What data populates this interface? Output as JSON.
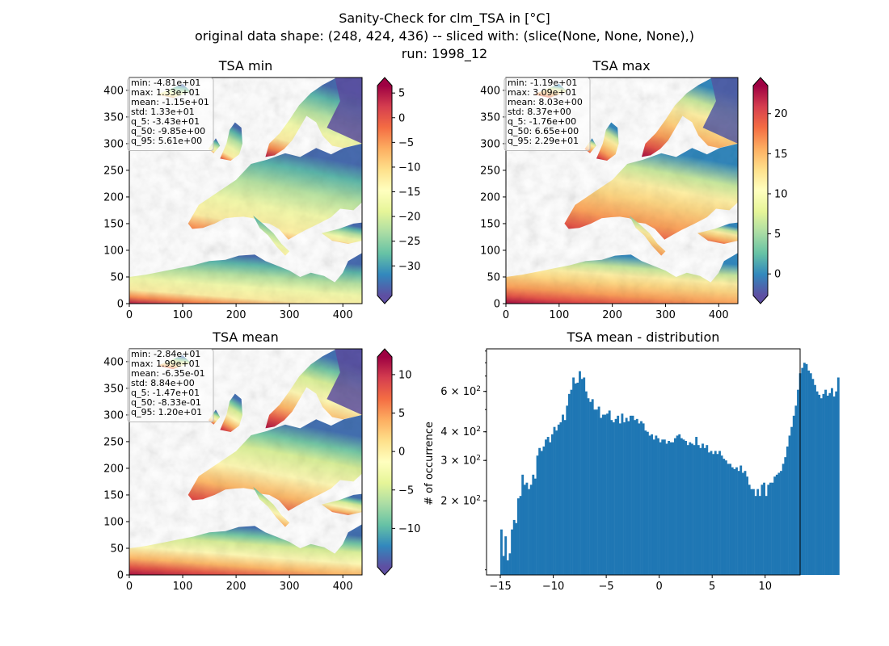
{
  "figure": {
    "title_line1": "Sanity-Check for clm_TSA in [°C]",
    "title_line2": "original data shape: (248, 424, 436) -- sliced with: (slice(None, None, None),)",
    "title_line3": "run: 1998_12"
  },
  "colors": {
    "spectral_r": [
      "#5e4fa2",
      "#3288bd",
      "#66c2a5",
      "#abdda4",
      "#e6f598",
      "#ffffbf",
      "#fee08b",
      "#fdae61",
      "#f46d43",
      "#d53e4f",
      "#9e0142"
    ],
    "hist_bar": "#1f77b4"
  },
  "chart_data": [
    {
      "type": "heatmap",
      "title": "TSA min",
      "xlim": [
        0,
        436
      ],
      "ylim": [
        0,
        424
      ],
      "xticks": [
        0,
        100,
        200,
        300,
        400
      ],
      "yticks": [
        0,
        50,
        100,
        150,
        200,
        250,
        300,
        350,
        400
      ],
      "colorbar": {
        "min": -36,
        "max": 6.5,
        "ticks": [
          5,
          0,
          -5,
          -10,
          -15,
          -20,
          -25,
          -30
        ],
        "extend": "both",
        "cmap": "Spectral_r"
      },
      "stats": [
        "min: -4.81e+01",
        "max: 1.33e+01",
        "mean: -1.15e+01",
        "std: 1.33e+01",
        "q_5: -3.43e+01",
        "q_50: -9.85e+00",
        "q_95: 5.61e+00"
      ]
    },
    {
      "type": "heatmap",
      "title": "TSA max",
      "xlim": [
        0,
        436
      ],
      "ylim": [
        0,
        424
      ],
      "xticks": [
        0,
        100,
        200,
        300,
        400
      ],
      "yticks": [
        0,
        50,
        100,
        150,
        200,
        250,
        300,
        350,
        400
      ],
      "colorbar": {
        "min": -2.7,
        "max": 23.5,
        "ticks": [
          20,
          15,
          10,
          5,
          0
        ],
        "extend": "both",
        "cmap": "Spectral_r"
      },
      "stats": [
        "min: -1.19e+01",
        "max: 3.09e+01",
        "mean: 8.03e+00",
        "std: 8.37e+00",
        "q_5: -1.76e+00",
        "q_50: 6.65e+00",
        "q_95: 2.29e+01"
      ]
    },
    {
      "type": "heatmap",
      "title": "TSA mean",
      "xlim": [
        0,
        436
      ],
      "ylim": [
        0,
        424
      ],
      "xticks": [
        0,
        100,
        200,
        300,
        400
      ],
      "yticks": [
        0,
        50,
        100,
        150,
        200,
        250,
        300,
        350,
        400
      ],
      "colorbar": {
        "min": -15,
        "max": 12.3,
        "ticks": [
          10,
          5,
          0,
          -5,
          -10
        ],
        "extend": "both",
        "cmap": "Spectral_r"
      },
      "stats": [
        "min: -2.84e+01",
        "max: 1.99e+01",
        "mean: -6.35e-01",
        "std: 8.84e+00",
        "q_5: -1.47e+01",
        "q_50: -8.33e-01",
        "q_95: 1.20e+01"
      ]
    },
    {
      "type": "bar",
      "title": "TSA mean - distribution",
      "xlabel": "",
      "ylabel": "# of occurrence",
      "xlim": [
        -16.3,
        13.3
      ],
      "ylim": [
        95,
        920
      ],
      "yscale": "log",
      "xticks": [
        -15,
        -10,
        -5,
        0,
        5,
        10
      ],
      "yticks": [
        {
          "value": 200,
          "label": "2 × 10²"
        },
        {
          "value": 300,
          "label": "3 × 10²"
        },
        {
          "value": 400,
          "label": "4 × 10²"
        },
        {
          "value": 600,
          "label": "6 × 10²"
        }
      ],
      "bin_start": -15,
      "bin_width": 0.2,
      "values": [
        150,
        115,
        140,
        110,
        118,
        150,
        165,
        160,
        205,
        210,
        260,
        235,
        240,
        225,
        235,
        260,
        250,
        315,
        340,
        330,
        345,
        370,
        380,
        360,
        390,
        420,
        405,
        430,
        440,
        475,
        450,
        520,
        585,
        610,
        690,
        650,
        655,
        735,
        680,
        690,
        600,
        560,
        540,
        555,
        500,
        500,
        515,
        460,
        475,
        475,
        480,
        495,
        450,
        440,
        455,
        470,
        435,
        480,
        440,
        460,
        445,
        470,
        470,
        450,
        455,
        435,
        445,
        435,
        405,
        400,
        385,
        390,
        370,
        385,
        375,
        360,
        370,
        370,
        355,
        365,
        360,
        360,
        375,
        385,
        390,
        375,
        370,
        365,
        350,
        360,
        355,
        350,
        380,
        350,
        340,
        355,
        340,
        350,
        325,
        330,
        320,
        330,
        320,
        330,
        315,
        305,
        300,
        290,
        290,
        280,
        275,
        280,
        270,
        285,
        265,
        270,
        255,
        235,
        225,
        225,
        210,
        225,
        210,
        235,
        240,
        210,
        235,
        240,
        240,
        255,
        260,
        265,
        270,
        290,
        310,
        345,
        385,
        420,
        470,
        520,
        610,
        720,
        760,
        800,
        790,
        740,
        720,
        680,
        640,
        600,
        580,
        560,
        585,
        610,
        575,
        590,
        620,
        570,
        600,
        690
      ]
    }
  ]
}
